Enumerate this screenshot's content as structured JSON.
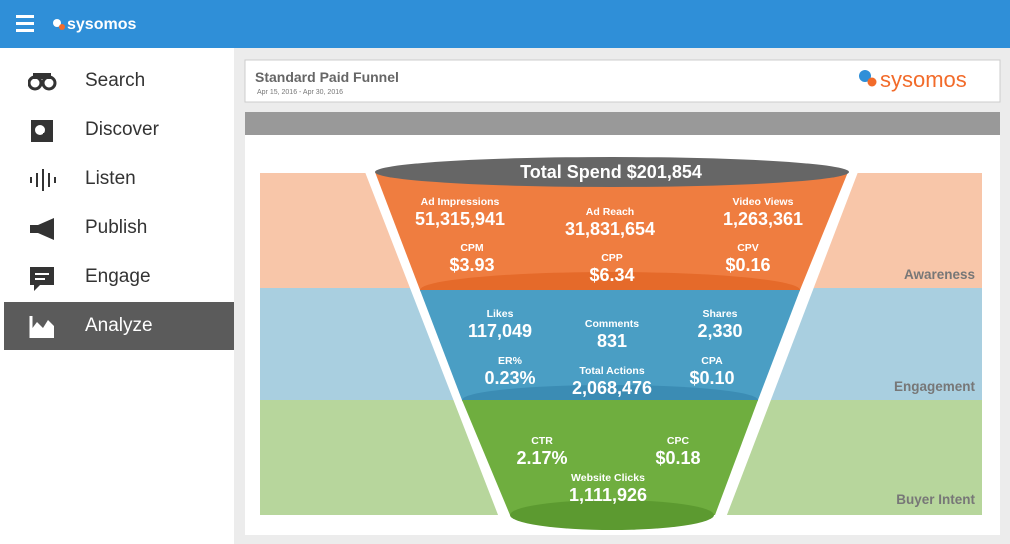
{
  "header": {
    "brand": "sysomos"
  },
  "nav": {
    "items": [
      "Search",
      "Discover",
      "Listen",
      "Publish",
      "Engage",
      "Analyze"
    ],
    "active": 5
  },
  "report": {
    "title": "Standard Paid Funnel",
    "date_range": "Apr 15, 2016 - Apr 30, 2016",
    "logo": "sysomos"
  },
  "funnel": {
    "total": "Total Spend $201,854",
    "stages": [
      {
        "name": "Awareness",
        "metrics": [
          {
            "label": "Ad Impressions",
            "value": "51,315,941"
          },
          {
            "label": "Ad Reach",
            "value": "31,831,654"
          },
          {
            "label": "Video Views",
            "value": "1,263,361"
          },
          {
            "label": "CPM",
            "value": "$3.93"
          },
          {
            "label": "CPP",
            "value": "$6.34"
          },
          {
            "label": "CPV",
            "value": "$0.16"
          }
        ]
      },
      {
        "name": "Engagement",
        "metrics": [
          {
            "label": "Likes",
            "value": "117,049"
          },
          {
            "label": "Comments",
            "value": "831"
          },
          {
            "label": "Shares",
            "value": "2,330"
          },
          {
            "label": "ER%",
            "value": "0.23%"
          },
          {
            "label": "Total Actions",
            "value": "2,068,476"
          },
          {
            "label": "CPA",
            "value": "$0.10"
          }
        ]
      },
      {
        "name": "Buyer Intent",
        "metrics": [
          {
            "label": "CTR",
            "value": "2.17%"
          },
          {
            "label": "CPC",
            "value": "$0.18"
          },
          {
            "label": "Website Clicks",
            "value": "1,111,926"
          }
        ]
      }
    ]
  }
}
